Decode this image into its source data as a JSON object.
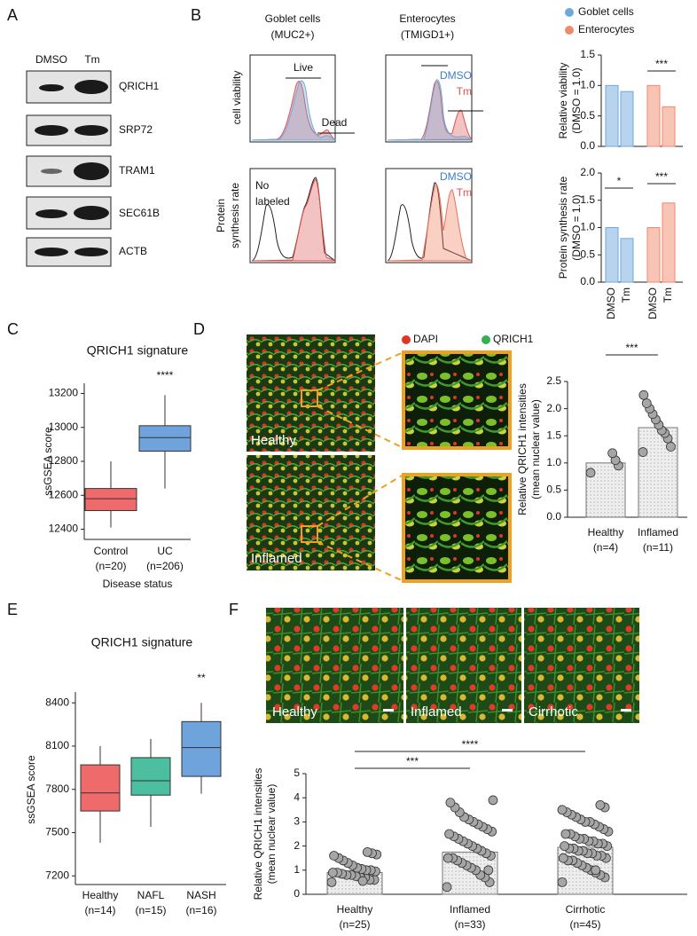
{
  "panel_labels": [
    "A",
    "B",
    "C",
    "D",
    "E",
    "F"
  ],
  "a": {
    "columns": [
      "DMSO",
      "Tm"
    ],
    "proteins": [
      "QRICH1",
      "SRP72",
      "TRAM1",
      "SEC61B",
      "ACTB"
    ]
  },
  "b": {
    "columns": [
      [
        "Goblet cells",
        "(MUC2+)"
      ],
      [
        "Enterocytes",
        "(TMIGD1+)"
      ]
    ],
    "row_labels": [
      [
        "cell viability"
      ],
      [
        "Protein",
        "synthesis rate"
      ]
    ],
    "annotations": {
      "live": "Live",
      "dead": "Dead",
      "no_labeled": [
        "No",
        "labeled"
      ],
      "dmso": "DMSO",
      "tm": "Tm"
    },
    "legend": [
      {
        "name": "Goblet cells",
        "color": "#6fa8dc"
      },
      {
        "name": "Enterocytes",
        "color": "#f08a6c"
      }
    ],
    "charts": [
      {
        "ylabel": [
          "Relative viability",
          "(DMSO = 1.0)"
        ],
        "ylim": [
          0,
          1.5
        ],
        "yticks": [
          {
            "value": 0,
            "label": "0.0"
          },
          {
            "value": 0.5,
            "label": "0.5"
          },
          {
            "value": 1,
            "label": "1.0"
          },
          {
            "value": 1.5,
            "label": "1.5"
          }
        ],
        "values": [
          1.0,
          0.9,
          1.0,
          0.65
        ],
        "significance": [
          "***"
        ]
      },
      {
        "ylabel": [
          "Protein synthesis rate",
          "(DMSO = 1.0)"
        ],
        "ylim": [
          0,
          2.0
        ],
        "yticks": [
          {
            "value": 0,
            "label": "0.0"
          },
          {
            "value": 0.5,
            "label": "0.5"
          },
          {
            "value": 1,
            "label": "1.0"
          },
          {
            "value": 1.5,
            "label": "1.5"
          },
          {
            "value": 2,
            "label": "2.0"
          }
        ],
        "categories": [
          "DMSO",
          "Tm",
          "DMSO",
          "Tm"
        ],
        "values": [
          1.0,
          0.8,
          1.0,
          1.45
        ],
        "significance": [
          "*",
          "***"
        ]
      }
    ]
  },
  "c": {
    "title": "QRICH1 signature",
    "ylabel": "ssGSEA score",
    "xlabel": "Disease status",
    "ylim": [
      12340,
      13260
    ],
    "yticks": [
      12400,
      12600,
      12800,
      13000,
      13200
    ],
    "categories": [
      [
        "Control",
        "(n=20)"
      ],
      [
        "UC",
        "(n=206)"
      ]
    ],
    "colors": [
      "#ef6b6b",
      "#6fa3dc"
    ],
    "boxes": [
      {
        "low": 12410,
        "q1": 12510,
        "median": 12580,
        "q3": 12640,
        "high": 12800
      },
      {
        "low": 12640,
        "q1": 12860,
        "median": 12940,
        "q3": 13010,
        "high": 13190
      }
    ],
    "significance": [
      "****"
    ]
  },
  "d": {
    "legend": [
      "DAPI",
      "QRICH1"
    ],
    "image_labels": [
      "Healthy",
      "Inflamed"
    ],
    "chart": {
      "ylabel": [
        "Relative QRICH1 intensities",
        "(mean nuclear value)"
      ],
      "ylim": [
        0,
        2.5
      ],
      "yticks": [
        {
          "value": 0,
          "label": "0.0"
        },
        {
          "value": 0.5,
          "label": "0.5"
        },
        {
          "value": 1,
          "label": "1.0"
        },
        {
          "value": 1.5,
          "label": "1.5"
        },
        {
          "value": 2,
          "label": "2.0"
        },
        {
          "value": 2.5,
          "label": "2.5"
        }
      ],
      "categories": [
        [
          "Healthy",
          "(n=4)"
        ],
        [
          "Inflamed",
          "(n=11)"
        ]
      ],
      "values": [
        1.0,
        1.65
      ],
      "points": [
        [
          0.82,
          0.95,
          1.05,
          1.18
        ],
        [
          1.2,
          1.3,
          1.45,
          1.55,
          1.6,
          1.7,
          1.8,
          1.9,
          2.0,
          2.1,
          2.25
        ]
      ],
      "significance": [
        "***"
      ]
    }
  },
  "e": {
    "title": "QRICH1 signature",
    "ylabel": "ssGSEA score",
    "ylim": [
      7140,
      8475
    ],
    "yticks": [
      7200,
      7500,
      7800,
      8100,
      8400
    ],
    "categories": [
      [
        "Healthy",
        "(n=14)"
      ],
      [
        "NAFL",
        "(n=15)"
      ],
      [
        "NASH",
        "(n=16)"
      ]
    ],
    "colors": [
      "#ef6b6b",
      "#4cbfa0",
      "#6fa3dc"
    ],
    "boxes": [
      {
        "low": 7430,
        "q1": 7650,
        "median": 7775,
        "q3": 7970,
        "high": 8100
      },
      {
        "low": 7540,
        "q1": 7760,
        "median": 7860,
        "q3": 8020,
        "high": 8150
      },
      {
        "low": 7770,
        "q1": 7890,
        "median": 8090,
        "q3": 8270,
        "high": 8400
      }
    ],
    "significance": [
      "**"
    ]
  },
  "f": {
    "image_labels": [
      "Healthy",
      "Inflamed",
      "Cirrhotic"
    ],
    "chart": {
      "ylabel": [
        "Relative QRICH1 intensities",
        "(mean nuclear value)"
      ],
      "ylim": [
        0,
        5
      ],
      "yticks": [
        0,
        1,
        2,
        3,
        4,
        5
      ],
      "categories": [
        [
          "Healthy",
          "(n=25)"
        ],
        [
          "Inflamed",
          "(n=33)"
        ],
        [
          "Cirrhotic",
          "(n=45)"
        ]
      ],
      "values": [
        0.9,
        1.75,
        1.95
      ],
      "points": [
        [
          0.5,
          0.6,
          0.6,
          0.7,
          0.7,
          0.75,
          0.8,
          0.8,
          0.85,
          0.9,
          0.9,
          0.95,
          1.0,
          1.0,
          1.05,
          1.1,
          1.2,
          1.3,
          1.4,
          1.5,
          1.6,
          1.65,
          1.7,
          1.75,
          0.55
        ],
        [
          0.3,
          0.5,
          0.7,
          0.8,
          1.0,
          1.1,
          1.2,
          1.3,
          1.4,
          1.5,
          1.5,
          1.6,
          1.7,
          1.8,
          1.9,
          2.0,
          2.1,
          2.2,
          2.3,
          2.4,
          2.5,
          2.6,
          2.7,
          2.8,
          2.9,
          3.0,
          3.1,
          3.2,
          3.4,
          3.6,
          3.8,
          3.9,
          1.0
        ],
        [
          0.5,
          0.7,
          0.8,
          0.9,
          1.0,
          1.1,
          1.2,
          1.3,
          1.4,
          1.4,
          1.5,
          1.5,
          1.6,
          1.6,
          1.7,
          1.7,
          1.8,
          1.8,
          1.9,
          1.9,
          2.0,
          2.0,
          2.1,
          2.1,
          2.2,
          2.2,
          2.3,
          2.3,
          2.4,
          2.5,
          2.5,
          2.6,
          2.7,
          2.8,
          2.9,
          3.0,
          3.0,
          3.1,
          3.2,
          3.3,
          3.4,
          3.5,
          3.6,
          3.7,
          1.0
        ]
      ],
      "significance": [
        "***",
        "****"
      ]
    }
  }
}
